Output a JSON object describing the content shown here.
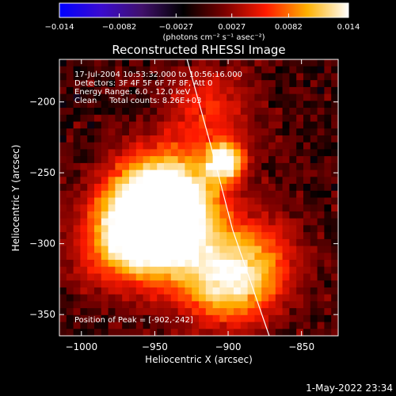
{
  "chart_data": {
    "type": "heatmap",
    "title": "Reconstructed RHESSI Image",
    "xlabel": "Heliocentric X (arcsec)",
    "ylabel": "Heliocentric Y (arcsec)",
    "xlim": [
      -1015,
      -825
    ],
    "ylim": [
      -365,
      -170
    ],
    "xticks": [
      -1000,
      -950,
      -900,
      -850
    ],
    "yticks": [
      -200,
      -250,
      -300,
      -350
    ],
    "xtick_labels": [
      "−1000",
      "−950",
      "−900",
      "−850"
    ],
    "ytick_labels": [
      "−200",
      "−250",
      "−300",
      "−350"
    ],
    "colorbar": {
      "min": -0.014,
      "max": 0.014,
      "ticks": [
        -0.014,
        -0.0082,
        -0.0027,
        0.0027,
        0.0082,
        0.014
      ],
      "tick_labels": [
        "−0.014",
        "−0.0082",
        "−0.0027",
        "0.0027",
        "0.0082",
        "0.014"
      ],
      "unit_label": "(photons cm⁻² s⁻¹ asec⁻²)",
      "colors": [
        "#0000ff",
        "#3a0bd0",
        "#40106b",
        "#000000",
        "#7a0000",
        "#ff1a00",
        "#ffb000",
        "#ffffff"
      ]
    },
    "annotations": [
      "17-Jul-2004 10:53:32.000 to 10:56:16.000",
      "Detectors: 3F 4F 5F 6F 7F 8F, Att 0",
      "Energy Range: 6.0 - 12.0 keV",
      "Clean     Total counts: 8.26E+03"
    ],
    "peak_label": "Position of Peak = [-902,-242]",
    "sources": [
      {
        "x": -902,
        "y": -242,
        "value": 0.014
      },
      {
        "x": -952,
        "y": -297,
        "value": 0.0105
      },
      {
        "x": -943,
        "y": -279,
        "value": 0.0082
      },
      {
        "x": -967,
        "y": -280,
        "value": 0.007
      },
      {
        "x": -948,
        "y": -255,
        "value": 0.006
      },
      {
        "x": -925,
        "y": -268,
        "value": 0.0055
      },
      {
        "x": -895,
        "y": -330,
        "value": 0.0082
      },
      {
        "x": -877,
        "y": -305,
        "value": 0.0055
      },
      {
        "x": -912,
        "y": -205,
        "value": 0.006
      },
      {
        "x": -985,
        "y": -310,
        "value": 0.0035
      },
      {
        "x": -915,
        "y": -325,
        "value": 0.005
      }
    ],
    "limb_curve": [
      {
        "x": -928,
        "y": -170
      },
      {
        "x": -912,
        "y": -230
      },
      {
        "x": -897,
        "y": -290
      },
      {
        "x": -872,
        "y": -365
      }
    ]
  },
  "footer_date": "1-May-2022 23:34"
}
